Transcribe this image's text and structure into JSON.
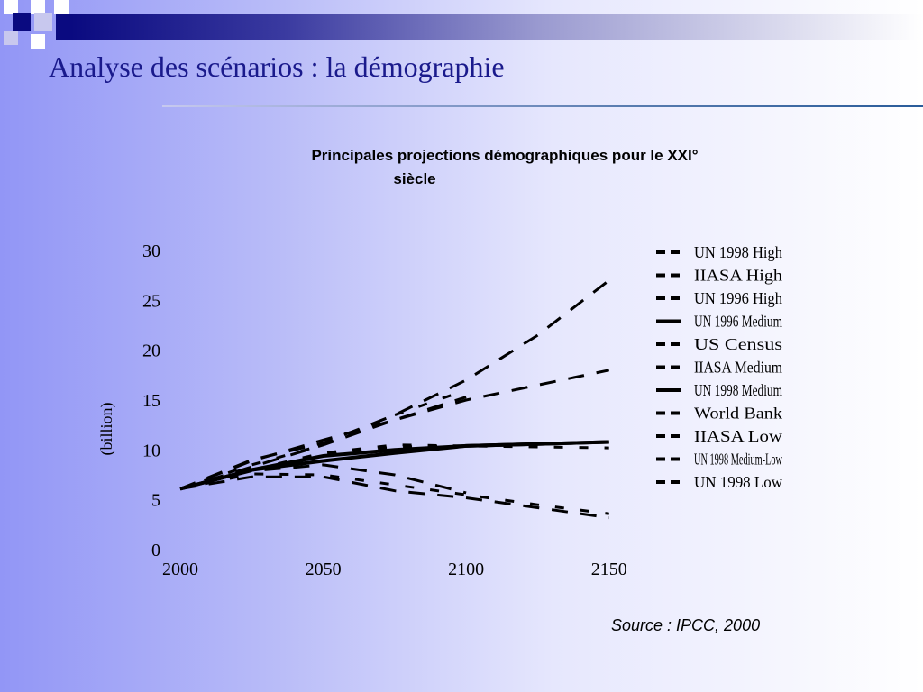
{
  "slide": {
    "title": "Analyse des scénarios : la démographie",
    "source": "Source : IPCC, 2000"
  },
  "colors": {
    "title": "#1a1a8c",
    "deco_dark": "#0a0a80",
    "deco_light": "#c8c8ee"
  },
  "chart_data": {
    "type": "line",
    "title_line1": "Principales projections démographiques pour le XXI°",
    "title_line2": "siècle",
    "xlabel": "",
    "ylabel": "(billion)",
    "xlim": [
      2000,
      2175
    ],
    "ylim": [
      0,
      30
    ],
    "x_ticks": [
      "2000",
      "2050",
      "2100",
      "2150"
    ],
    "x_tick_values": [
      2000,
      2050,
      2100,
      2150
    ],
    "y_ticks": [
      "0",
      "5",
      "10",
      "15",
      "20",
      "25",
      "30"
    ],
    "y_tick_values": [
      0,
      5,
      10,
      15,
      20,
      25,
      30
    ],
    "legend_position": "right",
    "series": [
      {
        "name": "UN 1998 High",
        "style": "dash",
        "x": [
          2000,
          2025,
          2050,
          2075,
          2100,
          2125,
          2150
        ],
        "values": [
          6.1,
          9.0,
          10.7,
          13.5,
          17.0,
          21.5,
          27.0
        ]
      },
      {
        "name": "IIASA High",
        "style": "dash",
        "x": [
          2000,
          2025,
          2050,
          2075,
          2100
        ],
        "values": [
          6.1,
          8.5,
          10.5,
          13.5,
          16.0
        ]
      },
      {
        "name": "UN 1996 High",
        "style": "dash",
        "x": [
          2000,
          2025,
          2050,
          2075,
          2100,
          2125,
          2150
        ],
        "values": [
          6.1,
          8.9,
          11.0,
          13.0,
          15.0,
          16.5,
          18.0
        ]
      },
      {
        "name": "UN 1996 Medium",
        "style": "solid",
        "x": [
          2000,
          2025,
          2050,
          2075,
          2100,
          2125,
          2150
        ],
        "values": [
          6.1,
          8.0,
          9.4,
          10.0,
          10.4,
          10.6,
          10.8
        ]
      },
      {
        "name": "US Census",
        "style": "dash",
        "x": [
          2000,
          2025,
          2050,
          2075,
          2100
        ],
        "values": [
          6.1,
          8.3,
          10.5,
          13.0,
          15.3
        ]
      },
      {
        "name": "IIASA Medium",
        "style": "dash",
        "x": [
          2000,
          2025,
          2050,
          2075,
          2100
        ],
        "values": [
          6.1,
          8.0,
          9.5,
          10.3,
          10.4
        ]
      },
      {
        "name": "UN 1998 Medium",
        "style": "solid",
        "x": [
          2000,
          2025,
          2050,
          2075,
          2100,
          2125,
          2150
        ],
        "values": [
          6.1,
          8.0,
          8.9,
          9.7,
          10.4,
          10.6,
          10.8
        ]
      },
      {
        "name": "World Bank",
        "style": "dash",
        "x": [
          2000,
          2025,
          2050,
          2075,
          2100,
          2125,
          2150
        ],
        "values": [
          6.1,
          8.0,
          9.7,
          10.5,
          10.4,
          10.3,
          10.2
        ]
      },
      {
        "name": "IIASA Low",
        "style": "dash",
        "x": [
          2000,
          2025,
          2050,
          2075,
          2100
        ],
        "values": [
          6.1,
          7.9,
          8.5,
          7.5,
          5.7
        ]
      },
      {
        "name": "UN 1998 Medium-Low",
        "style": "dash",
        "x": [
          2000,
          2025,
          2050,
          2075,
          2100,
          2125,
          2150
        ],
        "values": [
          6.1,
          7.6,
          7.5,
          6.5,
          5.5,
          4.5,
          3.6
        ]
      },
      {
        "name": "UN 1998 Low",
        "style": "dash",
        "x": [
          2000,
          2025,
          2050,
          2075,
          2100,
          2125,
          2150
        ],
        "values": [
          6.1,
          7.3,
          7.3,
          5.9,
          5.2,
          4.2,
          3.2
        ]
      }
    ]
  }
}
